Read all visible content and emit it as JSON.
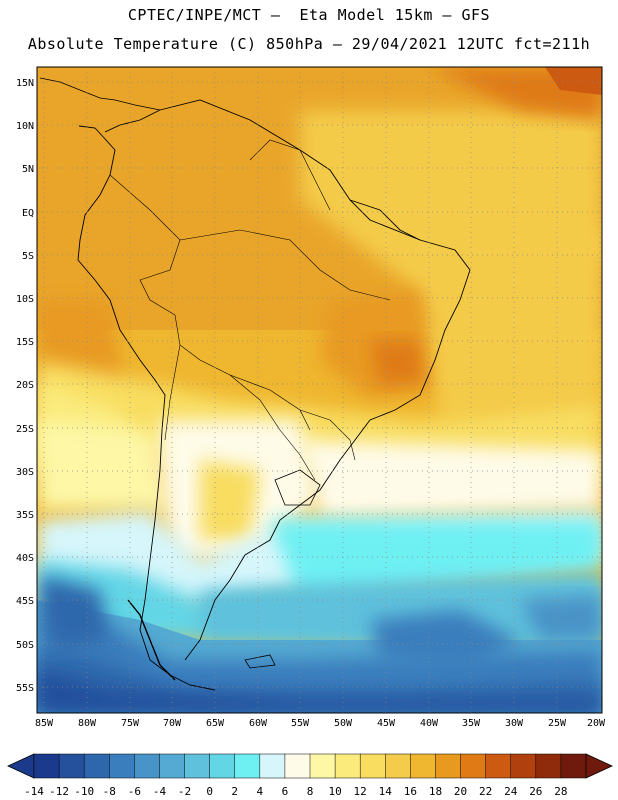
{
  "header": {
    "title_line1": "CPTEC/INPE/MCT –  Eta Model 15km – GFS",
    "title_line2": "Absolute Temperature (C) 850hPa – 29/04/2021 12UTC fct=211h"
  },
  "map": {
    "lat_labels": [
      "15N",
      "10N",
      "5N",
      "EQ",
      "5S",
      "10S",
      "15S",
      "20S",
      "25S",
      "30S",
      "35S",
      "40S",
      "45S",
      "50S",
      "55S"
    ],
    "lon_labels": [
      "85W",
      "80W",
      "75W",
      "70W",
      "65W",
      "60W",
      "55W",
      "50W",
      "45W",
      "40W",
      "35W",
      "30W",
      "25W",
      "20W"
    ]
  },
  "colorbar": {
    "labels": [
      "-14",
      "-12",
      "-10",
      "-8",
      "-6",
      "-4",
      "-2",
      "0",
      "2",
      "4",
      "6",
      "8",
      "10",
      "12",
      "14",
      "16",
      "18",
      "20",
      "22",
      "24",
      "26",
      "28"
    ],
    "colors": [
      "#1b3a8c",
      "#24509c",
      "#2e67ac",
      "#3a7ebd",
      "#4893c7",
      "#54aad2",
      "#5fc1dc",
      "#63d6e6",
      "#6ef0f3",
      "#d6f6fb",
      "#fefbe8",
      "#fdf7a6",
      "#fbeb7d",
      "#f8dd60",
      "#f4cb4a",
      "#efb62f",
      "#e89a20",
      "#df7a14",
      "#cc5a10",
      "#b0400d",
      "#8f2a0b",
      "#6f1a0c"
    ]
  }
}
